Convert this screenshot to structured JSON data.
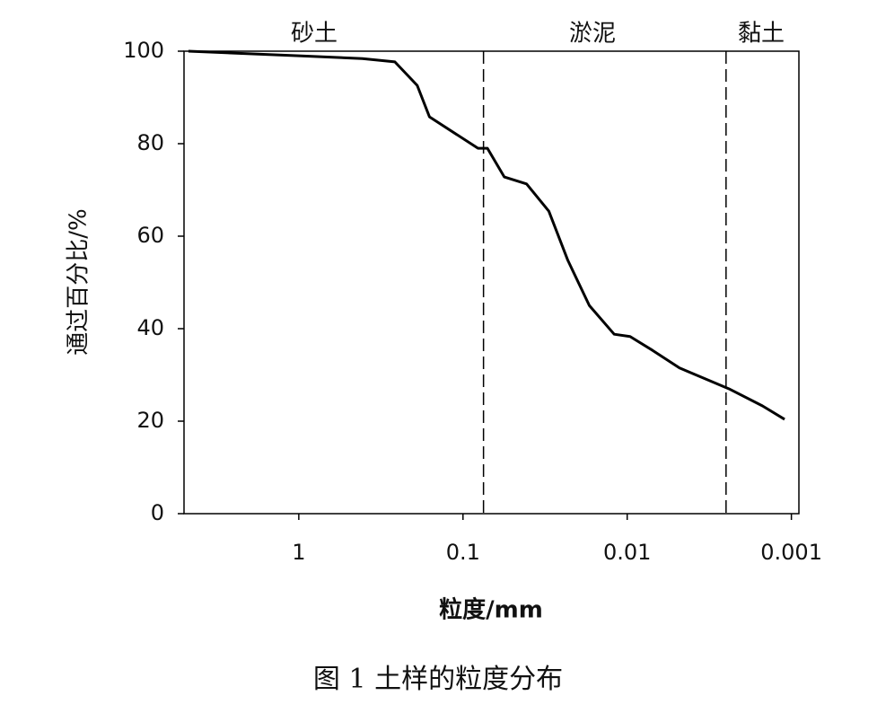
{
  "chart_data": {
    "type": "line",
    "x_label": "粒度/mm",
    "y_label": "通过百分比/%",
    "caption": "图 1  土样的粒度分布",
    "x_scale": "log",
    "x_reversed": true,
    "xlim": [
      5,
      0.0009
    ],
    "xticks": [
      1,
      0.1,
      0.01,
      0.001
    ],
    "ylim": [
      0,
      100
    ],
    "yticks": [
      0,
      20,
      40,
      60,
      80,
      100
    ],
    "boundaries": [
      0.075,
      0.0025
    ],
    "zones": [
      "砂土",
      "淤泥",
      "黏土"
    ],
    "series": [
      {
        "name": "土样",
        "color": "#000000",
        "x": [
          4.7,
          1.0,
          0.41,
          0.26,
          0.19,
          0.16,
          0.081,
          0.071,
          0.056,
          0.041,
          0.03,
          0.023,
          0.017,
          0.012,
          0.0096,
          0.007,
          0.0048,
          0.0024,
          0.0015,
          0.0011
        ],
        "values": [
          100,
          99,
          98.4,
          97.7,
          92.6,
          85.8,
          79,
          79,
          72.8,
          71.3,
          65.4,
          54.8,
          45,
          38.8,
          38.3,
          35.3,
          31.5,
          27,
          23.3,
          20.4
        ]
      }
    ]
  }
}
